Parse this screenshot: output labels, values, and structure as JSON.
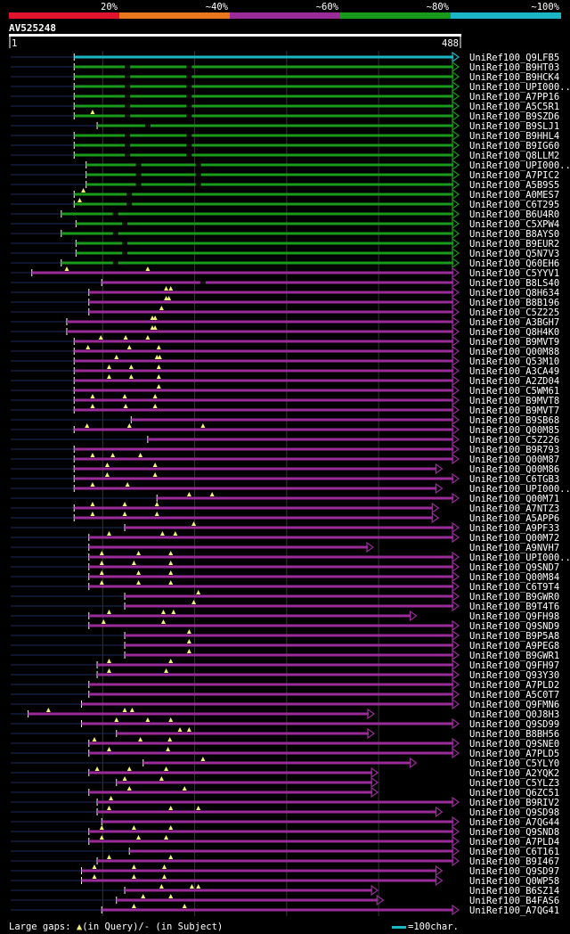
{
  "chart_data": {
    "type": "alignment-overview",
    "title": "AV525248",
    "query_length": 488,
    "ruler": {
      "start_label": "1",
      "end_label": "488"
    },
    "identity_legend": [
      {
        "label": "20%",
        "color": "#e0142c"
      },
      {
        "label": "~40%",
        "color": "#e8761c"
      },
      {
        "label": "~60%",
        "color": "#9a2c9a"
      },
      {
        "label": "~80%",
        "color": "#1a9a1a"
      },
      {
        "label": "~100%",
        "color": "#1ab6c6"
      }
    ],
    "color_by_class": {
      "c100": "#1ab6c6",
      "c80": "#1a9a1a",
      "c60": "#9a2c9a"
    },
    "hits": [
      {
        "id": "UniRef100_Q9LFB5",
        "start": 70,
        "end": 488,
        "cls": "c100",
        "gq": [],
        "gs": []
      },
      {
        "id": "UniRef100_B9HT03",
        "start": 70,
        "end": 488,
        "cls": "c80",
        "gq": [],
        "gs": [
          128,
          195
        ]
      },
      {
        "id": "UniRef100_B9HCK4",
        "start": 70,
        "end": 488,
        "cls": "c80",
        "gq": [],
        "gs": [
          128,
          195
        ]
      },
      {
        "id": "UniRef100_UPI000..",
        "start": 70,
        "end": 488,
        "cls": "c80",
        "gq": [],
        "gs": [
          128,
          195
        ]
      },
      {
        "id": "UniRef100_A7PP16",
        "start": 70,
        "end": 488,
        "cls": "c80",
        "gq": [],
        "gs": [
          128,
          195
        ]
      },
      {
        "id": "UniRef100_A5C5R1",
        "start": 70,
        "end": 488,
        "cls": "c80",
        "gq": [],
        "gs": [
          128,
          195
        ]
      },
      {
        "id": "UniRef100_B9SZD6",
        "start": 70,
        "end": 488,
        "cls": "c80",
        "gq": [
          90
        ],
        "gs": [
          128,
          195
        ]
      },
      {
        "id": "UniRef100_B9SLJ1",
        "start": 95,
        "end": 488,
        "cls": "c80",
        "gq": [],
        "gs": [
          150
        ]
      },
      {
        "id": "UniRef100_B9HHL4",
        "start": 70,
        "end": 488,
        "cls": "c80",
        "gq": [],
        "gs": [
          128,
          195
        ]
      },
      {
        "id": "UniRef100_B9IG60",
        "start": 70,
        "end": 488,
        "cls": "c80",
        "gq": [],
        "gs": [
          128,
          195
        ]
      },
      {
        "id": "UniRef100_Q8LLM2",
        "start": 70,
        "end": 488,
        "cls": "c80",
        "gq": [],
        "gs": [
          128,
          195
        ]
      },
      {
        "id": "UniRef100_UPI000..",
        "start": 83,
        "end": 488,
        "cls": "c80",
        "gq": [],
        "gs": [
          140,
          205
        ]
      },
      {
        "id": "UniRef100_A7PIC2",
        "start": 83,
        "end": 488,
        "cls": "c80",
        "gq": [],
        "gs": [
          140,
          205
        ]
      },
      {
        "id": "UniRef100_A5B9S5",
        "start": 83,
        "end": 488,
        "cls": "c80",
        "gq": [],
        "gs": [
          140,
          205
        ]
      },
      {
        "id": "UniRef100_A0MES7",
        "start": 70,
        "end": 488,
        "cls": "c80",
        "gq": [
          80
        ],
        "gs": [
          130
        ]
      },
      {
        "id": "UniRef100_C6T295",
        "start": 70,
        "end": 488,
        "cls": "c80",
        "gq": [
          76
        ],
        "gs": [
          130
        ]
      },
      {
        "id": "UniRef100_B6U4R0",
        "start": 56,
        "end": 488,
        "cls": "c80",
        "gq": [],
        "gs": [
          115
        ]
      },
      {
        "id": "UniRef100_C5XPW4",
        "start": 72,
        "end": 488,
        "cls": "c80",
        "gq": [],
        "gs": [
          125
        ]
      },
      {
        "id": "UniRef100_B8AYS0",
        "start": 56,
        "end": 488,
        "cls": "c80",
        "gq": [],
        "gs": [
          115
        ]
      },
      {
        "id": "UniRef100_B9EUR2",
        "start": 72,
        "end": 488,
        "cls": "c80",
        "gq": [],
        "gs": [
          125
        ]
      },
      {
        "id": "UniRef100_Q5N7V3",
        "start": 72,
        "end": 488,
        "cls": "c80",
        "gq": [],
        "gs": [
          125
        ]
      },
      {
        "id": "UniRef100_Q60EH6",
        "start": 56,
        "end": 488,
        "cls": "c80",
        "gq": [],
        "gs": [
          115
        ]
      },
      {
        "id": "UniRef100_C5YYV1",
        "start": 24,
        "end": 488,
        "cls": "c60",
        "gq": [
          62,
          150
        ],
        "gs": []
      },
      {
        "id": "UniRef100_B8LS40",
        "start": 100,
        "end": 488,
        "cls": "c60",
        "gq": [],
        "gs": [
          210
        ]
      },
      {
        "id": "UniRef100_Q8H634",
        "start": 86,
        "end": 488,
        "cls": "c60",
        "gq": [
          170,
          175
        ],
        "gs": []
      },
      {
        "id": "UniRef100_B8B196",
        "start": 86,
        "end": 488,
        "cls": "c60",
        "gq": [
          170,
          173
        ],
        "gs": []
      },
      {
        "id": "UniRef100_C5Z225",
        "start": 86,
        "end": 488,
        "cls": "c60",
        "gq": [
          165
        ],
        "gs": []
      },
      {
        "id": "UniRef100_A3BGH7",
        "start": 62,
        "end": 488,
        "cls": "c60",
        "gq": [
          155,
          158
        ],
        "gs": []
      },
      {
        "id": "UniRef100_Q8H4K0",
        "start": 62,
        "end": 488,
        "cls": "c60",
        "gq": [
          155,
          158
        ],
        "gs": []
      },
      {
        "id": "UniRef100_B9MVT9",
        "start": 70,
        "end": 488,
        "cls": "c60",
        "gq": [
          99,
          126,
          150
        ],
        "gs": []
      },
      {
        "id": "UniRef100_Q00M88",
        "start": 70,
        "end": 488,
        "cls": "c60",
        "gq": [
          85,
          130,
          162
        ],
        "gs": []
      },
      {
        "id": "UniRef100_Q53M10",
        "start": 70,
        "end": 488,
        "cls": "c60",
        "gq": [
          116,
          160,
          163
        ],
        "gs": []
      },
      {
        "id": "UniRef100_A3CA49",
        "start": 70,
        "end": 488,
        "cls": "c60",
        "gq": [
          108,
          132,
          162
        ],
        "gs": []
      },
      {
        "id": "UniRef100_A2ZD04",
        "start": 70,
        "end": 488,
        "cls": "c60",
        "gq": [
          108,
          132,
          162
        ],
        "gs": []
      },
      {
        "id": "UniRef100_C5WM61",
        "start": 70,
        "end": 488,
        "cls": "c60",
        "gq": [
          162
        ],
        "gs": []
      },
      {
        "id": "UniRef100_B9MVT8",
        "start": 70,
        "end": 488,
        "cls": "c60",
        "gq": [
          90,
          125,
          158
        ],
        "gs": []
      },
      {
        "id": "UniRef100_B9MVT7",
        "start": 70,
        "end": 488,
        "cls": "c60",
        "gq": [
          90,
          126,
          158
        ],
        "gs": []
      },
      {
        "id": "UniRef100_B9SB68",
        "start": 132,
        "end": 488,
        "cls": "c60",
        "gq": [],
        "gs": []
      },
      {
        "id": "UniRef100_Q00M85",
        "start": 70,
        "end": 488,
        "cls": "c60",
        "gq": [
          84,
          130,
          210
        ],
        "gs": []
      },
      {
        "id": "UniRef100_C5Z226",
        "start": 150,
        "end": 488,
        "cls": "c60",
        "gq": [],
        "gs": []
      },
      {
        "id": "UniRef100_B9R793",
        "start": 70,
        "end": 488,
        "cls": "c60",
        "gq": [],
        "gs": []
      },
      {
        "id": "UniRef100_Q00M87",
        "start": 70,
        "end": 488,
        "cls": "c60",
        "gq": [
          90,
          112,
          142
        ],
        "gs": []
      },
      {
        "id": "UniRef100_Q00M86",
        "start": 70,
        "end": 470,
        "cls": "c60",
        "gq": [
          106,
          158
        ],
        "gs": []
      },
      {
        "id": "UniRef100_C6TGB3",
        "start": 70,
        "end": 488,
        "cls": "c60",
        "gq": [
          106,
          158
        ],
        "gs": []
      },
      {
        "id": "UniRef100_UPI000..",
        "start": 70,
        "end": 470,
        "cls": "c60",
        "gq": [
          90,
          128
        ],
        "gs": []
      },
      {
        "id": "UniRef100_Q00M71",
        "start": 160,
        "end": 488,
        "cls": "c60",
        "gq": [
          195,
          220
        ],
        "gs": []
      },
      {
        "id": "UniRef100_A7NTZ3",
        "start": 70,
        "end": 466,
        "cls": "c60",
        "gq": [
          90,
          125,
          160
        ],
        "gs": []
      },
      {
        "id": "UniRef100_A5APP6",
        "start": 70,
        "end": 466,
        "cls": "c60",
        "gq": [
          90,
          125,
          160
        ],
        "gs": []
      },
      {
        "id": "UniRef100_A9PF33",
        "start": 125,
        "end": 488,
        "cls": "c60",
        "gq": [
          200
        ],
        "gs": []
      },
      {
        "id": "UniRef100_Q00M72",
        "start": 86,
        "end": 488,
        "cls": "c60",
        "gq": [
          108,
          166,
          180
        ],
        "gs": []
      },
      {
        "id": "UniRef100_A9NVH7",
        "start": 86,
        "end": 395,
        "cls": "c60",
        "gq": [],
        "gs": []
      },
      {
        "id": "UniRef100_UPI000..",
        "start": 86,
        "end": 488,
        "cls": "c60",
        "gq": [
          100,
          140,
          175
        ],
        "gs": []
      },
      {
        "id": "UniRef100_Q9SND7",
        "start": 86,
        "end": 488,
        "cls": "c60",
        "gq": [
          100,
          135,
          175
        ],
        "gs": []
      },
      {
        "id": "UniRef100_Q00M84",
        "start": 86,
        "end": 488,
        "cls": "c60",
        "gq": [
          100,
          140,
          175
        ],
        "gs": []
      },
      {
        "id": "UniRef100_C6T9T4",
        "start": 86,
        "end": 488,
        "cls": "c60",
        "gq": [
          100,
          140,
          175
        ],
        "gs": []
      },
      {
        "id": "UniRef100_B9GWR0",
        "start": 125,
        "end": 488,
        "cls": "c60",
        "gq": [
          205
        ],
        "gs": []
      },
      {
        "id": "UniRef100_B9T4T6",
        "start": 125,
        "end": 488,
        "cls": "c60",
        "gq": [
          200
        ],
        "gs": []
      },
      {
        "id": "UniRef100_Q9FH98",
        "start": 86,
        "end": 442,
        "cls": "c60",
        "gq": [
          108,
          167,
          178
        ],
        "gs": []
      },
      {
        "id": "UniRef100_Q9SND9",
        "start": 86,
        "end": 488,
        "cls": "c60",
        "gq": [
          102,
          167
        ],
        "gs": []
      },
      {
        "id": "UniRef100_B9P5A8",
        "start": 125,
        "end": 488,
        "cls": "c60",
        "gq": [
          195
        ],
        "gs": []
      },
      {
        "id": "UniRef100_A9PEG8",
        "start": 125,
        "end": 488,
        "cls": "c60",
        "gq": [
          195
        ],
        "gs": []
      },
      {
        "id": "UniRef100_B9GWR1",
        "start": 125,
        "end": 488,
        "cls": "c60",
        "gq": [
          195
        ],
        "gs": []
      },
      {
        "id": "UniRef100_Q9FH97",
        "start": 95,
        "end": 488,
        "cls": "c60",
        "gq": [
          108,
          175
        ],
        "gs": []
      },
      {
        "id": "UniRef100_Q93Y30",
        "start": 95,
        "end": 488,
        "cls": "c60",
        "gq": [
          108,
          170
        ],
        "gs": []
      },
      {
        "id": "UniRef100_A7PLD2",
        "start": 86,
        "end": 488,
        "cls": "c60",
        "gq": [],
        "gs": []
      },
      {
        "id": "UniRef100_A5C0T7",
        "start": 86,
        "end": 488,
        "cls": "c60",
        "gq": [],
        "gs": []
      },
      {
        "id": "UniRef100_Q9FMN6",
        "start": 78,
        "end": 488,
        "cls": "c60",
        "gq": [],
        "gs": []
      },
      {
        "id": "UniRef100_Q0J8H3",
        "start": 20,
        "end": 396,
        "cls": "c60",
        "gq": [
          42,
          125,
          133
        ],
        "gs": []
      },
      {
        "id": "UniRef100_Q9SD99",
        "start": 78,
        "end": 488,
        "cls": "c60",
        "gq": [
          116,
          150,
          175
        ],
        "gs": []
      },
      {
        "id": "UniRef100_B8BH56",
        "start": 116,
        "end": 396,
        "cls": "c60",
        "gq": [
          185,
          195
        ],
        "gs": []
      },
      {
        "id": "UniRef100_Q9SNE0",
        "start": 86,
        "end": 488,
        "cls": "c60",
        "gq": [
          92,
          142,
          174
        ],
        "gs": []
      },
      {
        "id": "UniRef100_A7PLD5",
        "start": 86,
        "end": 488,
        "cls": "c60",
        "gq": [
          108,
          172
        ],
        "gs": []
      },
      {
        "id": "UniRef100_C5YLY0",
        "start": 145,
        "end": 442,
        "cls": "c60",
        "gq": [
          210
        ],
        "gs": []
      },
      {
        "id": "UniRef100_A2YQK2",
        "start": 86,
        "end": 400,
        "cls": "c60",
        "gq": [
          95,
          130,
          170
        ],
        "gs": []
      },
      {
        "id": "UniRef100_C5YLZ3",
        "start": 116,
        "end": 400,
        "cls": "c60",
        "gq": [
          125,
          165
        ],
        "gs": []
      },
      {
        "id": "UniRef100_Q6ZC51",
        "start": 86,
        "end": 400,
        "cls": "c60",
        "gq": [
          130,
          190
        ],
        "gs": []
      },
      {
        "id": "UniRef100_B9RIV2",
        "start": 95,
        "end": 488,
        "cls": "c60",
        "gq": [
          110
        ],
        "gs": []
      },
      {
        "id": "UniRef100_Q9SD98",
        "start": 95,
        "end": 470,
        "cls": "c60",
        "gq": [
          108,
          175,
          205
        ],
        "gs": []
      },
      {
        "id": "UniRef100_A7QG44",
        "start": 100,
        "end": 488,
        "cls": "c60",
        "gq": [],
        "gs": []
      },
      {
        "id": "UniRef100_Q9SND8",
        "start": 86,
        "end": 488,
        "cls": "c60",
        "gq": [
          100,
          135,
          175
        ],
        "gs": []
      },
      {
        "id": "UniRef100_A7PLD4",
        "start": 86,
        "end": 488,
        "cls": "c60",
        "gq": [
          100,
          140,
          170
        ],
        "gs": []
      },
      {
        "id": "UniRef100_C6T161",
        "start": 130,
        "end": 488,
        "cls": "c60",
        "gq": [],
        "gs": []
      },
      {
        "id": "UniRef100_B9I467",
        "start": 95,
        "end": 488,
        "cls": "c60",
        "gq": [
          108,
          175
        ],
        "gs": []
      },
      {
        "id": "UniRef100_Q9SD97",
        "start": 78,
        "end": 470,
        "cls": "c60",
        "gq": [
          92,
          135,
          168
        ],
        "gs": []
      },
      {
        "id": "UniRef100_Q0WP58",
        "start": 78,
        "end": 470,
        "cls": "c60",
        "gq": [
          92,
          135,
          168
        ],
        "gs": []
      },
      {
        "id": "UniRef100_B6SZ14",
        "start": 125,
        "end": 400,
        "cls": "c60",
        "gq": [
          165,
          198,
          205
        ],
        "gs": []
      },
      {
        "id": "UniRef100_B4FAS6",
        "start": 116,
        "end": 406,
        "cls": "c60",
        "gq": [
          145,
          175
        ],
        "gs": []
      },
      {
        "id": "UniRef100_A7QG41",
        "start": 100,
        "end": 488,
        "cls": "c60",
        "gq": [
          135,
          190
        ],
        "gs": []
      }
    ]
  },
  "footer": {
    "gaps_prefix": "Large gaps: ",
    "gaps_query": "(in Query)/",
    "gaps_subject_mark": "-",
    "gaps_subject": " (in Subject)",
    "scale_label": "=100char."
  }
}
